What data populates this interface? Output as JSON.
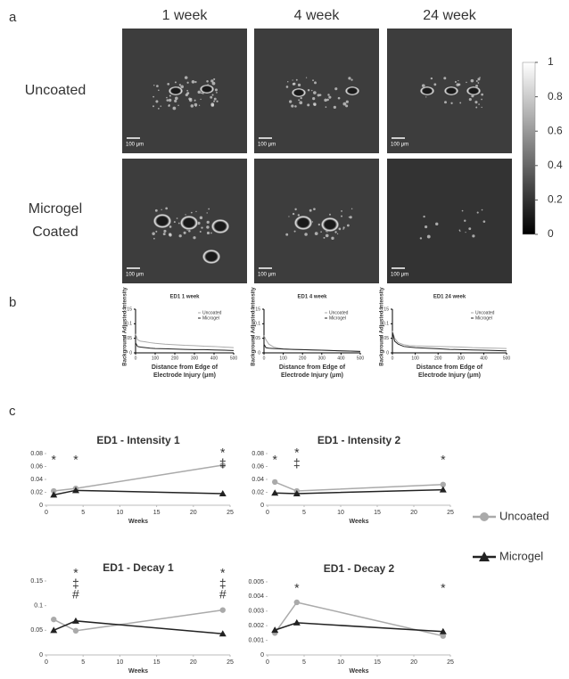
{
  "panel_labels": [
    "a",
    "b",
    "c"
  ],
  "panel_a": {
    "columns": [
      "1 week",
      "4 week",
      "24 week"
    ],
    "rows": [
      [
        "Uncoated"
      ],
      [
        "Microgel",
        "Coated"
      ]
    ],
    "scale_bar": "100 μm",
    "colorbar": {
      "ticks": [
        0,
        0.2,
        0.4,
        0.6,
        0.8,
        1
      ]
    }
  },
  "chart_data": [
    {
      "type": "line",
      "title": "ED1 1 week",
      "y_label": "Background Adjusted Intensity",
      "x_label": [
        "Distance from Edge of",
        "Electrode Injury (μm)"
      ],
      "x": [
        0,
        10,
        25,
        50,
        75,
        100,
        150,
        200,
        250,
        300,
        350,
        400,
        450,
        500
      ],
      "series": [
        {
          "name": "Uncoated",
          "color": "#aaaaaa",
          "values": [
            0.065,
            0.045,
            0.04,
            0.038,
            0.035,
            0.033,
            0.03,
            0.028,
            0.026,
            0.025,
            0.023,
            0.022,
            0.02,
            0.018
          ]
        },
        {
          "name": "Microgel",
          "color": "#222222",
          "values": [
            0.035,
            0.022,
            0.02,
            0.018,
            0.016,
            0.015,
            0.014,
            0.013,
            0.012,
            0.011,
            0.011,
            0.01,
            0.009,
            0.008
          ]
        }
      ],
      "xlim": [
        0,
        500
      ],
      "xticks": [
        0,
        100,
        200,
        300,
        400,
        500
      ],
      "ylim": [
        0,
        0.15
      ],
      "yticks": [
        0,
        0.05,
        0.1,
        0.15
      ],
      "legend": "upper right"
    },
    {
      "type": "line",
      "title": "ED1 4 week",
      "y_label": "Background Adjusted Intensity",
      "x_label": [
        "Distance from Edge of",
        "Electrode Injury (μm)"
      ],
      "x": [
        0,
        10,
        25,
        50,
        75,
        100,
        150,
        200,
        250,
        300,
        350,
        400,
        450,
        500
      ],
      "series": [
        {
          "name": "Uncoated",
          "color": "#aaaaaa",
          "values": [
            0.06,
            0.045,
            0.03,
            0.02,
            0.016,
            0.014,
            0.012,
            0.011,
            0.01,
            0.009,
            0.008,
            0.007,
            0.006,
            0.005
          ]
        },
        {
          "name": "Microgel",
          "color": "#222222",
          "values": [
            0.03,
            0.018,
            0.016,
            0.015,
            0.014,
            0.013,
            0.012,
            0.011,
            0.01,
            0.009,
            0.008,
            0.007,
            0.006,
            0.005
          ]
        }
      ],
      "xlim": [
        0,
        500
      ],
      "xticks": [
        0,
        100,
        200,
        300,
        400,
        500
      ],
      "ylim": [
        0,
        0.15
      ],
      "yticks": [
        0,
        0.05,
        0.1,
        0.15
      ],
      "legend": "upper right"
    },
    {
      "type": "line",
      "title": "ED1 24 week",
      "y_label": "Background Adjusted Intensity",
      "x_label": [
        "Distance from Edge of",
        "Electrode Injury (μm)"
      ],
      "x": [
        0,
        10,
        25,
        50,
        75,
        100,
        150,
        200,
        250,
        300,
        350,
        400,
        450,
        500
      ],
      "series": [
        {
          "name": "Uncoated",
          "color": "#aaaaaa",
          "values": [
            0.075,
            0.05,
            0.035,
            0.028,
            0.025,
            0.024,
            0.023,
            0.022,
            0.021,
            0.02,
            0.018,
            0.017,
            0.016,
            0.015
          ]
        },
        {
          "name": "Microgel",
          "color": "#222222",
          "values": [
            0.07,
            0.04,
            0.03,
            0.022,
            0.02,
            0.018,
            0.016,
            0.014,
            0.012,
            0.011,
            0.01,
            0.009,
            0.008,
            0.007
          ]
        }
      ],
      "xlim": [
        0,
        500
      ],
      "xticks": [
        0,
        100,
        200,
        300,
        400,
        500
      ],
      "ylim": [
        0,
        0.15
      ],
      "yticks": [
        0,
        0.05,
        0.1,
        0.15
      ],
      "legend": "upper right"
    },
    {
      "type": "line",
      "title": "ED1 - Intensity 1",
      "x_label": [
        "Weeks"
      ],
      "x": [
        1,
        4,
        24
      ],
      "series": [
        {
          "name": "Uncoated",
          "color": "#aaaaaa",
          "marker": "circle",
          "values": [
            0.022,
            0.026,
            0.062
          ]
        },
        {
          "name": "Microgel",
          "color": "#222222",
          "marker": "triangle",
          "values": [
            0.016,
            0.023,
            0.018
          ]
        }
      ],
      "xlim": [
        0,
        25
      ],
      "xticks": [
        0,
        5,
        10,
        15,
        20,
        25
      ],
      "ylim": [
        0,
        0.08
      ],
      "yticks": [
        0,
        0.02,
        0.04,
        0.06,
        0.08
      ],
      "annotations": [
        {
          "x": 1,
          "labels": [
            "*"
          ]
        },
        {
          "x": 4,
          "labels": [
            "*"
          ]
        },
        {
          "x": 24,
          "labels": [
            "*",
            "‡"
          ]
        }
      ],
      "legend": "right"
    },
    {
      "type": "line",
      "title": "ED1 - Intensity 2",
      "x_label": [
        "Weeks"
      ],
      "x": [
        1,
        4,
        24
      ],
      "series": [
        {
          "name": "Uncoated",
          "color": "#aaaaaa",
          "marker": "circle",
          "values": [
            0.036,
            0.022,
            0.032
          ]
        },
        {
          "name": "Microgel",
          "color": "#222222",
          "marker": "triangle",
          "values": [
            0.019,
            0.018,
            0.024
          ]
        }
      ],
      "xlim": [
        0,
        25
      ],
      "xticks": [
        0,
        5,
        10,
        15,
        20,
        25
      ],
      "ylim": [
        0,
        0.08
      ],
      "yticks": [
        0,
        0.02,
        0.04,
        0.06,
        0.08
      ],
      "annotations": [
        {
          "x": 1,
          "labels": [
            "*"
          ]
        },
        {
          "x": 4,
          "labels": [
            "*",
            "‡"
          ]
        },
        {
          "x": 24,
          "labels": [
            "*"
          ]
        }
      ]
    },
    {
      "type": "line",
      "title": "ED1 - Decay 1",
      "x_label": [
        "Weeks"
      ],
      "x": [
        1,
        4,
        24
      ],
      "series": [
        {
          "name": "Uncoated",
          "color": "#aaaaaa",
          "marker": "circle",
          "values": [
            0.072,
            0.049,
            0.091
          ]
        },
        {
          "name": "Microgel",
          "color": "#222222",
          "marker": "triangle",
          "values": [
            0.05,
            0.069,
            0.043
          ]
        }
      ],
      "xlim": [
        0,
        25
      ],
      "xticks": [
        0,
        5,
        10,
        15,
        20,
        25
      ],
      "ylim": [
        0,
        0.15
      ],
      "yticks": [
        0,
        0.05,
        0.1,
        0.15
      ],
      "annotations": [
        {
          "x": 4,
          "labels": [
            "*",
            "‡",
            "#"
          ]
        },
        {
          "x": 24,
          "labels": [
            "*",
            "‡",
            "#"
          ]
        }
      ]
    },
    {
      "type": "line",
      "title": "ED1 - Decay 2",
      "x_label": [
        "Weeks"
      ],
      "x": [
        1,
        4,
        24
      ],
      "series": [
        {
          "name": "Uncoated",
          "color": "#aaaaaa",
          "marker": "circle",
          "values": [
            0.0015,
            0.0036,
            0.0013
          ]
        },
        {
          "name": "Microgel",
          "color": "#222222",
          "marker": "triangle",
          "values": [
            0.0017,
            0.0022,
            0.0016
          ]
        }
      ],
      "xlim": [
        0,
        25
      ],
      "xticks": [
        0,
        5,
        10,
        15,
        20,
        25
      ],
      "ylim": [
        0,
        0.005
      ],
      "yticks": [
        0,
        0.001,
        0.002,
        0.003,
        0.004,
        0.005
      ],
      "annotations": [
        {
          "x": 4,
          "labels": [
            "*"
          ]
        },
        {
          "x": 24,
          "labels": [
            "*"
          ]
        }
      ]
    }
  ]
}
